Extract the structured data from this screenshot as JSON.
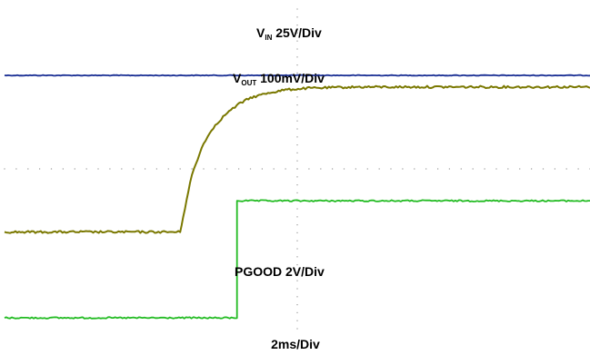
{
  "chart_data": {
    "type": "line",
    "title": "",
    "xlabel": "2ms/Div",
    "ylabel": "",
    "grid": "dotted",
    "x_divisions": 10,
    "y_divisions": 8,
    "annotations": [
      {
        "id": "vin",
        "main": "V",
        "sub": "IN",
        "rest": " 25V/Div"
      },
      {
        "id": "vout",
        "main": "V",
        "sub": "OUT",
        "rest": " 100mV/Div"
      },
      {
        "id": "pgood",
        "main": "PGOOD 2V/Div",
        "sub": "",
        "rest": ""
      }
    ],
    "series": [
      {
        "name": "VIN",
        "color": "#1a2f94",
        "points": [
          [
            0,
            2.34
          ],
          [
            10,
            2.34
          ]
        ]
      },
      {
        "name": "VOUT",
        "color": "#7a7800",
        "points": [
          [
            0,
            -1.58
          ],
          [
            3.0,
            -1.58
          ],
          [
            3.05,
            -1.2
          ],
          [
            3.2,
            -0.15
          ],
          [
            3.4,
            0.65
          ],
          [
            3.6,
            1.1
          ],
          [
            3.8,
            1.4
          ],
          [
            4.0,
            1.62
          ],
          [
            4.2,
            1.78
          ],
          [
            4.5,
            1.9
          ],
          [
            4.8,
            1.98
          ],
          [
            5.2,
            2.02
          ],
          [
            6.0,
            2.05
          ],
          [
            8.0,
            2.05
          ],
          [
            10,
            2.05
          ]
        ]
      },
      {
        "name": "PGOOD",
        "color": "#22bb22",
        "points": [
          [
            0,
            -3.73
          ],
          [
            3.97,
            -3.73
          ],
          [
            3.97,
            -0.8
          ],
          [
            10,
            -0.8
          ]
        ]
      }
    ]
  }
}
